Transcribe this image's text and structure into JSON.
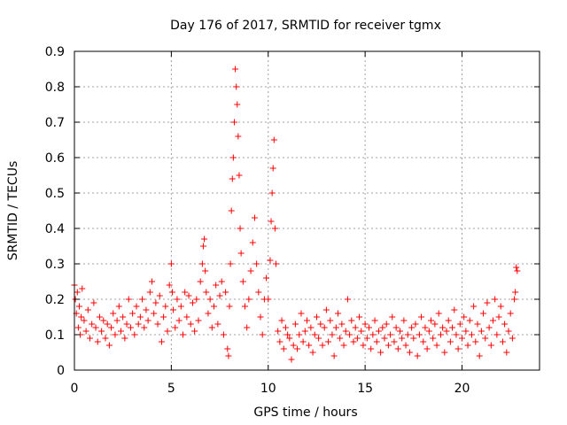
{
  "chart_data": {
    "type": "scatter",
    "title": "Day 176 of 2017, SRMTID for receiver tgmx",
    "xlabel": "GPS time / hours",
    "ylabel": "SRMTID / TECUs",
    "xlim": [
      0,
      24
    ],
    "ylim": [
      0,
      0.9
    ],
    "xticks": [
      0,
      5,
      10,
      15,
      20
    ],
    "yticks": [
      0,
      0.1,
      0.2,
      0.3,
      0.4,
      0.5,
      0.6,
      0.7,
      0.8,
      0.9
    ],
    "xtick_labels": [
      "0",
      "5",
      "10",
      "15",
      "20"
    ],
    "ytick_labels": [
      "0",
      "0.1",
      "0.2",
      "0.3",
      "0.4",
      "0.5",
      "0.6",
      "0.7",
      "0.8",
      "0.9"
    ],
    "grid": true,
    "marker": "+",
    "series": [
      {
        "name": "SRMTID",
        "color": "#ff0000",
        "points": [
          [
            0.0,
            0.24
          ],
          [
            0.05,
            0.2
          ],
          [
            0.1,
            0.16
          ],
          [
            0.15,
            0.22
          ],
          [
            0.2,
            0.12
          ],
          [
            0.25,
            0.18
          ],
          [
            0.3,
            0.1
          ],
          [
            0.35,
            0.15
          ],
          [
            0.4,
            0.23
          ],
          [
            0.5,
            0.14
          ],
          [
            0.6,
            0.11
          ],
          [
            0.7,
            0.17
          ],
          [
            0.8,
            0.09
          ],
          [
            0.9,
            0.13
          ],
          [
            1.0,
            0.19
          ],
          [
            1.1,
            0.12
          ],
          [
            1.2,
            0.08
          ],
          [
            1.3,
            0.15
          ],
          [
            1.4,
            0.11
          ],
          [
            1.5,
            0.14
          ],
          [
            1.6,
            0.09
          ],
          [
            1.7,
            0.13
          ],
          [
            1.8,
            0.07
          ],
          [
            1.9,
            0.12
          ],
          [
            2.0,
            0.16
          ],
          [
            2.1,
            0.1
          ],
          [
            2.2,
            0.14
          ],
          [
            2.3,
            0.18
          ],
          [
            2.4,
            0.11
          ],
          [
            2.5,
            0.15
          ],
          [
            2.6,
            0.09
          ],
          [
            2.7,
            0.13
          ],
          [
            2.8,
            0.2
          ],
          [
            2.9,
            0.12
          ],
          [
            3.0,
            0.16
          ],
          [
            3.1,
            0.1
          ],
          [
            3.2,
            0.18
          ],
          [
            3.3,
            0.13
          ],
          [
            3.4,
            0.15
          ],
          [
            3.5,
            0.2
          ],
          [
            3.6,
            0.12
          ],
          [
            3.7,
            0.17
          ],
          [
            3.8,
            0.14
          ],
          [
            3.9,
            0.22
          ],
          [
            4.0,
            0.25
          ],
          [
            4.1,
            0.16
          ],
          [
            4.2,
            0.19
          ],
          [
            4.3,
            0.13
          ],
          [
            4.4,
            0.21
          ],
          [
            4.5,
            0.08
          ],
          [
            4.6,
            0.15
          ],
          [
            4.7,
            0.18
          ],
          [
            4.8,
            0.11
          ],
          [
            4.9,
            0.24
          ],
          [
            5.0,
            0.3
          ],
          [
            5.05,
            0.22
          ],
          [
            5.1,
            0.17
          ],
          [
            5.2,
            0.12
          ],
          [
            5.3,
            0.2
          ],
          [
            5.4,
            0.14
          ],
          [
            5.5,
            0.18
          ],
          [
            5.6,
            0.1
          ],
          [
            5.7,
            0.22
          ],
          [
            5.8,
            0.15
          ],
          [
            5.9,
            0.21
          ],
          [
            6.0,
            0.13
          ],
          [
            6.1,
            0.19
          ],
          [
            6.2,
            0.11
          ],
          [
            6.3,
            0.2
          ],
          [
            6.4,
            0.14
          ],
          [
            6.5,
            0.25
          ],
          [
            6.6,
            0.3
          ],
          [
            6.65,
            0.35
          ],
          [
            6.7,
            0.37
          ],
          [
            6.75,
            0.28
          ],
          [
            6.8,
            0.22
          ],
          [
            6.9,
            0.16
          ],
          [
            7.0,
            0.2
          ],
          [
            7.1,
            0.12
          ],
          [
            7.2,
            0.18
          ],
          [
            7.3,
            0.24
          ],
          [
            7.4,
            0.13
          ],
          [
            7.5,
            0.21
          ],
          [
            7.6,
            0.25
          ],
          [
            7.7,
            0.1
          ],
          [
            7.8,
            0.22
          ],
          [
            7.9,
            0.06
          ],
          [
            7.95,
            0.04
          ],
          [
            8.0,
            0.18
          ],
          [
            8.05,
            0.3
          ],
          [
            8.1,
            0.45
          ],
          [
            8.15,
            0.54
          ],
          [
            8.2,
            0.6
          ],
          [
            8.25,
            0.7
          ],
          [
            8.3,
            0.85
          ],
          [
            8.35,
            0.8
          ],
          [
            8.4,
            0.75
          ],
          [
            8.45,
            0.66
          ],
          [
            8.5,
            0.55
          ],
          [
            8.55,
            0.4
          ],
          [
            8.6,
            0.33
          ],
          [
            8.7,
            0.25
          ],
          [
            8.8,
            0.18
          ],
          [
            8.9,
            0.12
          ],
          [
            9.0,
            0.2
          ],
          [
            9.1,
            0.28
          ],
          [
            9.2,
            0.36
          ],
          [
            9.3,
            0.43
          ],
          [
            9.4,
            0.3
          ],
          [
            9.5,
            0.22
          ],
          [
            9.6,
            0.15
          ],
          [
            9.7,
            0.1
          ],
          [
            9.8,
            0.2
          ],
          [
            9.9,
            0.26
          ],
          [
            10.0,
            0.2
          ],
          [
            10.1,
            0.31
          ],
          [
            10.15,
            0.42
          ],
          [
            10.2,
            0.5
          ],
          [
            10.25,
            0.57
          ],
          [
            10.3,
            0.65
          ],
          [
            10.35,
            0.4
          ],
          [
            10.4,
            0.3
          ],
          [
            10.5,
            0.11
          ],
          [
            10.6,
            0.08
          ],
          [
            10.7,
            0.14
          ],
          [
            10.8,
            0.06
          ],
          [
            10.9,
            0.12
          ],
          [
            11.0,
            0.1
          ],
          [
            11.1,
            0.09
          ],
          [
            11.2,
            0.03
          ],
          [
            11.3,
            0.07
          ],
          [
            11.4,
            0.13
          ],
          [
            11.5,
            0.06
          ],
          [
            11.6,
            0.1
          ],
          [
            11.7,
            0.16
          ],
          [
            11.8,
            0.08
          ],
          [
            11.9,
            0.11
          ],
          [
            12.0,
            0.14
          ],
          [
            12.1,
            0.07
          ],
          [
            12.2,
            0.12
          ],
          [
            12.3,
            0.05
          ],
          [
            12.4,
            0.1
          ],
          [
            12.5,
            0.15
          ],
          [
            12.6,
            0.09
          ],
          [
            12.7,
            0.13
          ],
          [
            12.8,
            0.07
          ],
          [
            12.9,
            0.12
          ],
          [
            13.0,
            0.17
          ],
          [
            13.1,
            0.08
          ],
          [
            13.2,
            0.14
          ],
          [
            13.3,
            0.1
          ],
          [
            13.4,
            0.04
          ],
          [
            13.5,
            0.12
          ],
          [
            13.6,
            0.16
          ],
          [
            13.7,
            0.09
          ],
          [
            13.8,
            0.13
          ],
          [
            13.9,
            0.07
          ],
          [
            14.0,
            0.11
          ],
          [
            14.1,
            0.2
          ],
          [
            14.2,
            0.1
          ],
          [
            14.3,
            0.14
          ],
          [
            14.4,
            0.08
          ],
          [
            14.5,
            0.12
          ],
          [
            14.6,
            0.09
          ],
          [
            14.7,
            0.15
          ],
          [
            14.8,
            0.11
          ],
          [
            14.9,
            0.07
          ],
          [
            15.0,
            0.13
          ],
          [
            15.1,
            0.09
          ],
          [
            15.2,
            0.12
          ],
          [
            15.3,
            0.06
          ],
          [
            15.4,
            0.1
          ],
          [
            15.5,
            0.14
          ],
          [
            15.6,
            0.08
          ],
          [
            15.7,
            0.11
          ],
          [
            15.8,
            0.05
          ],
          [
            15.9,
            0.12
          ],
          [
            16.0,
            0.09
          ],
          [
            16.1,
            0.13
          ],
          [
            16.2,
            0.07
          ],
          [
            16.3,
            0.1
          ],
          [
            16.4,
            0.15
          ],
          [
            16.5,
            0.08
          ],
          [
            16.6,
            0.12
          ],
          [
            16.7,
            0.06
          ],
          [
            16.8,
            0.11
          ],
          [
            16.9,
            0.09
          ],
          [
            17.0,
            0.14
          ],
          [
            17.1,
            0.07
          ],
          [
            17.2,
            0.1
          ],
          [
            17.3,
            0.05
          ],
          [
            17.4,
            0.12
          ],
          [
            17.5,
            0.09
          ],
          [
            17.6,
            0.13
          ],
          [
            17.7,
            0.04
          ],
          [
            17.8,
            0.1
          ],
          [
            17.9,
            0.15
          ],
          [
            18.0,
            0.08
          ],
          [
            18.1,
            0.12
          ],
          [
            18.2,
            0.06
          ],
          [
            18.3,
            0.11
          ],
          [
            18.4,
            0.14
          ],
          [
            18.5,
            0.09
          ],
          [
            18.6,
            0.13
          ],
          [
            18.7,
            0.07
          ],
          [
            18.8,
            0.16
          ],
          [
            18.9,
            0.1
          ],
          [
            19.0,
            0.12
          ],
          [
            19.1,
            0.05
          ],
          [
            19.2,
            0.11
          ],
          [
            19.3,
            0.14
          ],
          [
            19.4,
            0.08
          ],
          [
            19.5,
            0.12
          ],
          [
            19.6,
            0.17
          ],
          [
            19.7,
            0.1
          ],
          [
            19.8,
            0.06
          ],
          [
            19.9,
            0.13
          ],
          [
            20.0,
            0.09
          ],
          [
            20.1,
            0.15
          ],
          [
            20.2,
            0.11
          ],
          [
            20.3,
            0.07
          ],
          [
            20.4,
            0.14
          ],
          [
            20.5,
            0.1
          ],
          [
            20.6,
            0.18
          ],
          [
            20.7,
            0.08
          ],
          [
            20.8,
            0.13
          ],
          [
            20.9,
            0.04
          ],
          [
            21.0,
            0.11
          ],
          [
            21.1,
            0.16
          ],
          [
            21.2,
            0.09
          ],
          [
            21.3,
            0.19
          ],
          [
            21.4,
            0.12
          ],
          [
            21.5,
            0.07
          ],
          [
            21.6,
            0.14
          ],
          [
            21.7,
            0.2
          ],
          [
            21.8,
            0.1
          ],
          [
            21.9,
            0.15
          ],
          [
            22.0,
            0.18
          ],
          [
            22.1,
            0.08
          ],
          [
            22.2,
            0.13
          ],
          [
            22.3,
            0.05
          ],
          [
            22.4,
            0.11
          ],
          [
            22.5,
            0.16
          ],
          [
            22.6,
            0.09
          ],
          [
            22.7,
            0.2
          ],
          [
            22.75,
            0.22
          ],
          [
            22.8,
            0.29
          ],
          [
            22.85,
            0.28
          ]
        ]
      }
    ]
  }
}
